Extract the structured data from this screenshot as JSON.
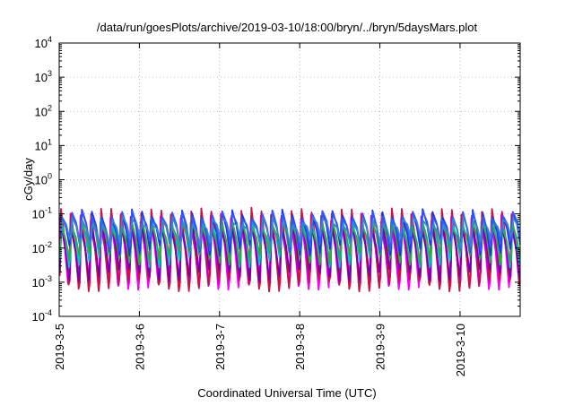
{
  "chart_data": {
    "type": "line",
    "title": "/data/run/goesPlots/archive/2019-03-10/18:00/bryn/../bryn/5daysMars.plot",
    "xlabel": "Coordinated Universal Time (UTC)",
    "ylabel": "cGy/day",
    "y_scale": "log",
    "ylim": [
      0.0001,
      10000
    ],
    "y_ticks": [
      {
        "value": 0.0001,
        "base": "10",
        "exp": "-4"
      },
      {
        "value": 0.001,
        "base": "10",
        "exp": "-3"
      },
      {
        "value": 0.01,
        "base": "10",
        "exp": "-2"
      },
      {
        "value": 0.1,
        "base": "10",
        "exp": "-1"
      },
      {
        "value": 1,
        "base": "10",
        "exp": "0"
      },
      {
        "value": 10,
        "base": "10",
        "exp": "1"
      },
      {
        "value": 100,
        "base": "10",
        "exp": "2"
      },
      {
        "value": 1000,
        "base": "10",
        "exp": "3"
      },
      {
        "value": 10000,
        "base": "10",
        "exp": "4"
      }
    ],
    "xlim": [
      "2019-03-05T00:00",
      "2019-03-10T18:00"
    ],
    "x_ticks": [
      "2019-3-5",
      "2019-3-6",
      "2019-3-7",
      "2019-3-8",
      "2019-3-9",
      "2019-3-10"
    ],
    "grid": true,
    "legend": "none",
    "series_colors": [
      "#ff00ff",
      "#dd00dd",
      "#aa00cc",
      "#cc1144",
      "#7700aa",
      "#00c8c8",
      "#33aa44",
      "#2233ee",
      "#3355ff",
      "#3388cc"
    ],
    "series_levels": [
      {
        "peak": 0.075,
        "trough": 0.0009
      },
      {
        "peak": 0.055,
        "trough": 0.0013
      },
      {
        "peak": 0.07,
        "trough": 0.0011
      },
      {
        "peak": 0.11,
        "trough": 0.0008
      },
      {
        "peak": 0.045,
        "trough": 0.0016
      },
      {
        "peak": 0.065,
        "trough": 0.004
      },
      {
        "peak": 0.05,
        "trough": 0.005
      },
      {
        "peak": 0.1,
        "trough": 0.009
      },
      {
        "peak": 0.09,
        "trough": 0.012
      },
      {
        "peak": 0.06,
        "trough": 0.015
      }
    ],
    "period_hours": 3
  }
}
